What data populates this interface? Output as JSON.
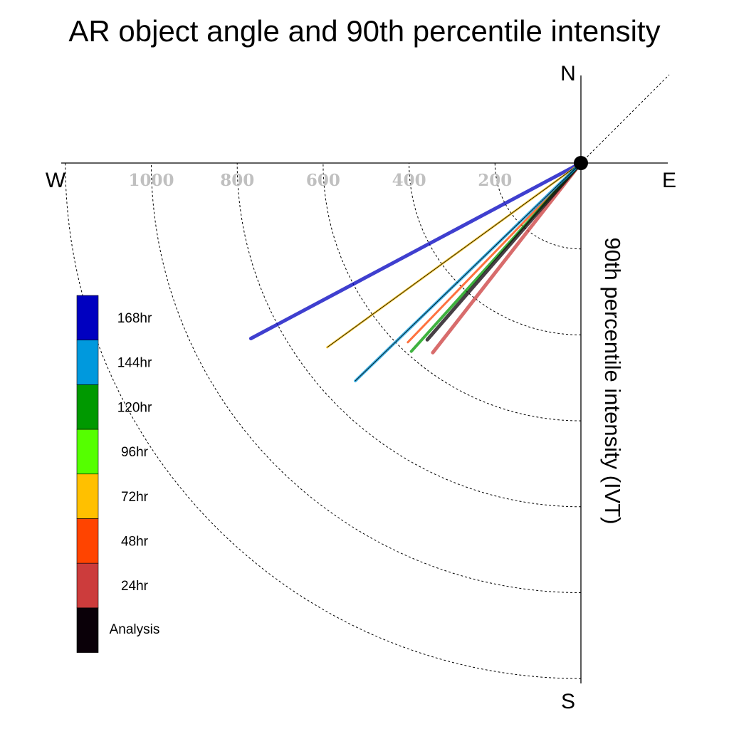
{
  "chart_data": {
    "type": "polar-vector",
    "title": "AR object angle and 90th percentile intensity",
    "ylabel": "90th percentile intensity (IVT)",
    "compass": {
      "north": "N",
      "south": "S",
      "east": "E",
      "west": "W"
    },
    "radial_ticks": [
      "1000",
      "800",
      "600",
      "400",
      "200"
    ],
    "radial_tick_values": [
      1000,
      800,
      600,
      400,
      200
    ],
    "rlim": [
      0,
      1200
    ],
    "grid": true,
    "series": [
      {
        "name": "168hr",
        "color": "#0000c0",
        "angle_deg_from_south": 62,
        "intensity": 870
      },
      {
        "name": "144hr",
        "color": "#0099dd",
        "angle_deg_from_south": 46,
        "intensity": 730
      },
      {
        "name": "120hr",
        "color": "#009900",
        "angle_deg_from_south": 42,
        "intensity": 590
      },
      {
        "name": "96hr",
        "color": "#55ff00",
        "angle_deg_from_south": 0,
        "intensity": 0
      },
      {
        "name": "72hr",
        "color": "#ffc000",
        "angle_deg_from_south": 54,
        "intensity": 730
      },
      {
        "name": "48hr",
        "color": "#ff4400",
        "angle_deg_from_south": 44,
        "intensity": 580
      },
      {
        "name": "24hr",
        "color": "#cc3c3c",
        "angle_deg_from_south": 38,
        "intensity": 560
      },
      {
        "name": "Analysis",
        "color": "#0a0008",
        "angle_deg_from_south": 41,
        "intensity": 545
      }
    ]
  }
}
